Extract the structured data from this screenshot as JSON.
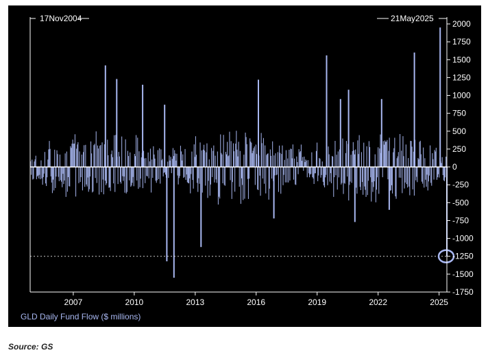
{
  "source_note": "Source: GS",
  "colors": {
    "background": "#000000",
    "bars": "#a9b8f2",
    "zero_line": "#ffffff",
    "axis": "#ffffff",
    "highlight": "#a9b8f2"
  },
  "chart_data": {
    "type": "bar",
    "title": "",
    "ylabel": "GLD Daily Fund Flow ($ millions)",
    "xlabel": "",
    "start_label": "17Nov2004",
    "end_label": "21May2025",
    "start_date": "2004-11-17",
    "end_date": "2025-05-21",
    "ylim": [
      -1750,
      2000
    ],
    "yticks": [
      2000,
      1750,
      1500,
      1250,
      1000,
      750,
      500,
      250,
      0,
      -250,
      -500,
      -750,
      -1000,
      -1250,
      -1500,
      -1750
    ],
    "xticks": [
      "2007",
      "2010",
      "2013",
      "2016",
      "2019",
      "2022",
      "2025"
    ],
    "reference_line": {
      "value": -1250,
      "style": "dotted"
    },
    "highlight": {
      "date": "2025-05-21",
      "value": -1250,
      "marker": "circle"
    },
    "grid": false,
    "legend": "none",
    "notable_points": [
      {
        "date": "2008-08-01",
        "value": 1420
      },
      {
        "date": "2009-02-20",
        "value": 1230
      },
      {
        "date": "2010-06-01",
        "value": 1150
      },
      {
        "date": "2011-07-01",
        "value": 870
      },
      {
        "date": "2011-08-10",
        "value": -1320
      },
      {
        "date": "2011-12-15",
        "value": -1550
      },
      {
        "date": "2013-04-15",
        "value": -1120
      },
      {
        "date": "2016-02-10",
        "value": 1220
      },
      {
        "date": "2016-11-15",
        "value": -720
      },
      {
        "date": "2019-06-20",
        "value": 1560
      },
      {
        "date": "2020-02-25",
        "value": 950
      },
      {
        "date": "2020-07-20",
        "value": 1080
      },
      {
        "date": "2020-11-10",
        "value": -770
      },
      {
        "date": "2022-03-05",
        "value": 950
      },
      {
        "date": "2022-07-20",
        "value": -600
      },
      {
        "date": "2023-10-15",
        "value": 1600
      },
      {
        "date": "2025-01-20",
        "value": 1950
      },
      {
        "date": "2025-05-21",
        "value": -1250
      }
    ]
  }
}
